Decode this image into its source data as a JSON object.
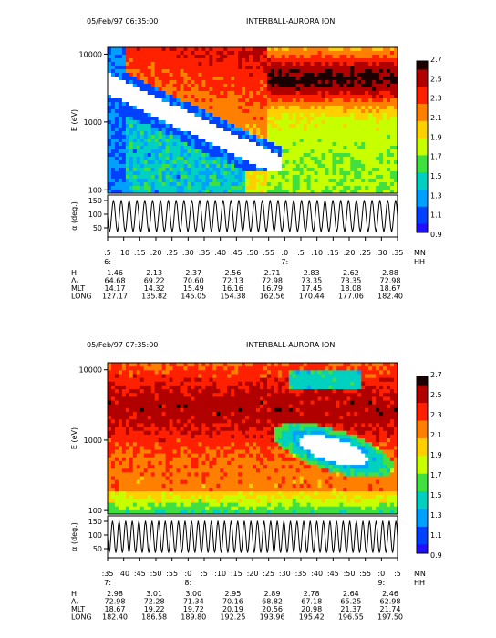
{
  "colorbar": {
    "ticks": [
      "2.7",
      "2.5",
      "2.3",
      "2.1",
      "1.9",
      "1.7",
      "1.5",
      "1.3",
      "1.1",
      "0.9"
    ],
    "colors": [
      "#1a0000",
      "#b00000",
      "#ff2000",
      "#ff8000",
      "#ffd000",
      "#c8ff00",
      "#40e040",
      "#00d0c0",
      "#00a0ff",
      "#0040ff",
      "#2010ff"
    ]
  },
  "chart_data": [
    {
      "type": "heatmap",
      "date_label": "05/Feb/97 06:35:00",
      "instrument": "INTERBALL-AURORA  ION",
      "ylabel_top": "E (eV)",
      "ylabel_bottom": "α (deg.)",
      "y_ticks_energy": [
        "10000",
        "1000",
        "100"
      ],
      "y_ticks_alpha": [
        "150",
        "100",
        "50"
      ],
      "x_ticks": [
        ":5",
        ":10",
        ":15",
        ":20",
        ":25",
        ":30",
        ":35",
        ":40",
        ":45",
        ":50",
        ":55",
        ":0",
        ":5",
        ":10",
        ":15",
        ":20",
        ":25",
        ":30",
        ":35"
      ],
      "hour_marks": [
        {
          "index": 0,
          "label": "6:"
        },
        {
          "index": 11,
          "label": "7:"
        }
      ],
      "axis_units": [
        "MN",
        "HH"
      ],
      "ephemeris": {
        "labels": [
          "H",
          "Λᵥ",
          "MLT",
          "LONG"
        ],
        "rows": [
          [
            "1.46",
            "2.13",
            "2.37",
            "2.56",
            "2.71",
            "2.83",
            "2.62",
            "2.88"
          ],
          [
            "64.68",
            "69.22",
            "70.60",
            "72.13",
            "72.98",
            "73.35",
            "73.35",
            "72.98"
          ],
          [
            "14.17",
            "14.32",
            "15.49",
            "16.16",
            "16.79",
            "17.45",
            "18.08",
            "18.67"
          ],
          [
            "127.17",
            "135.82",
            "145.05",
            "154.38",
            "162.56",
            "170.44",
            "177.06",
            "182.40"
          ]
        ]
      },
      "alpha_cycles": 37
    },
    {
      "type": "heatmap",
      "date_label": "05/Feb/97 07:35:00",
      "instrument": "INTERBALL-AURORA  ION",
      "ylabel_top": "E (eV)",
      "ylabel_bottom": "α (deg.)",
      "y_ticks_energy": [
        "10000",
        "1000",
        "100"
      ],
      "y_ticks_alpha": [
        "150",
        "100",
        "50"
      ],
      "x_ticks": [
        ":35",
        ":40",
        ":45",
        ":50",
        ":55",
        ":0",
        ":5",
        ":10",
        ":15",
        ":20",
        ":25",
        ":30",
        ":35",
        ":40",
        ":45",
        ":50",
        ":55",
        ":0",
        ":5"
      ],
      "hour_marks": [
        {
          "index": 0,
          "label": "7:"
        },
        {
          "index": 5,
          "label": "8:"
        },
        {
          "index": 17,
          "label": "9:"
        }
      ],
      "axis_units": [
        "MN",
        "HH"
      ],
      "ephemeris": {
        "labels": [
          "H",
          "Λᵥ",
          "MLT",
          "LONG"
        ],
        "rows": [
          [
            "2.98",
            "3.01",
            "3.00",
            "2.95",
            "2.89",
            "2.78",
            "2.64",
            "2.46"
          ],
          [
            "72.98",
            "72.28",
            "71.34",
            "70.16",
            "68.82",
            "67.18",
            "65.25",
            "62.98"
          ],
          [
            "18.67",
            "19.22",
            "19.72",
            "20.19",
            "20.56",
            "20.98",
            "21.37",
            "21.74"
          ],
          [
            "182.40",
            "186.58",
            "189.80",
            "192.25",
            "193.96",
            "195.42",
            "196.55",
            "197.50"
          ]
        ]
      },
      "alpha_cycles": 44
    }
  ]
}
